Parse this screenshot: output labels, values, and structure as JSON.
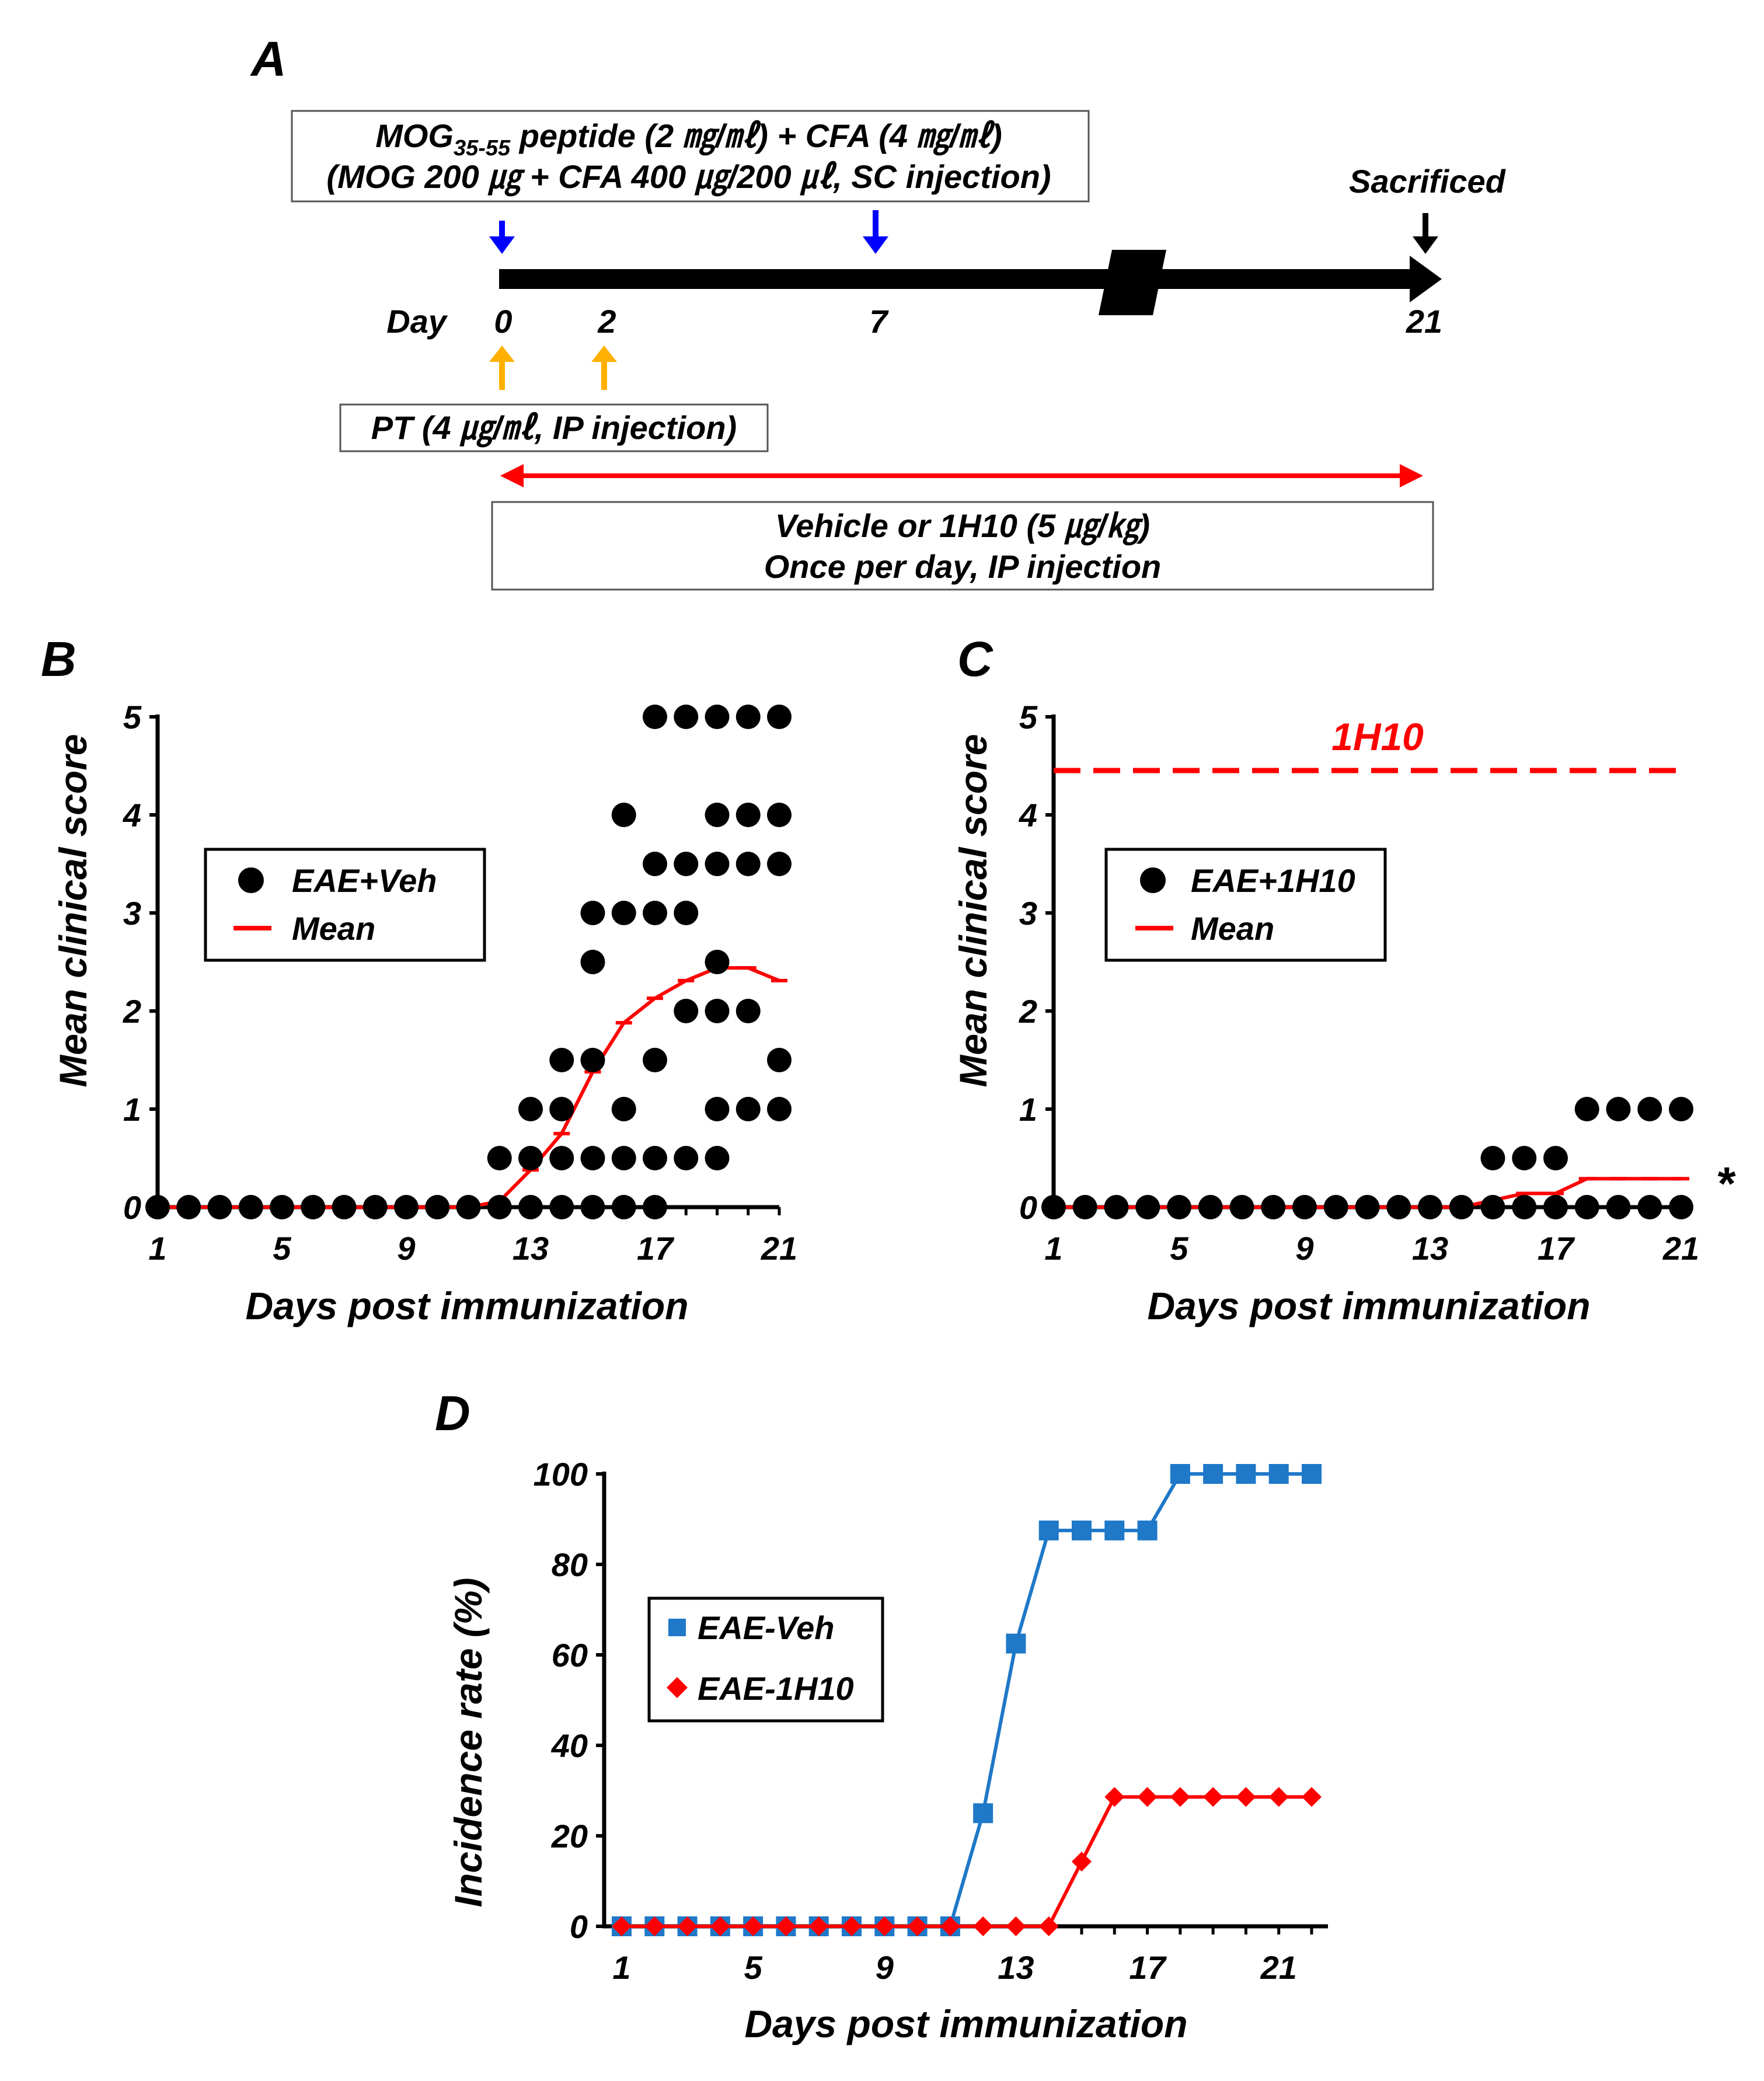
{
  "colors": {
    "red": "#ff0000",
    "blue": "#0000ff",
    "orange": "#ffb000",
    "steel_blue": "#1f78c8",
    "black": "#000000"
  },
  "panelA": {
    "label": "A",
    "mog_line1_a": "MOG",
    "mog_line1_sub": "35-55",
    "mog_line1_b": " peptide (2 ㎎/㎖) + CFA (4 ㎎/㎖)",
    "mog_line2": "(MOG 200 ㎍ + CFA 400 ㎍/200 ㎕, SC injection)",
    "sacrificed": "Sacrificed",
    "day_label": "Day",
    "day_0": "0",
    "day_2": "2",
    "day_7": "7",
    "day_21": "21",
    "pt_text": "PT (4 ㎍/㎖, IP injection)",
    "vehicle_line1": "Vehicle or 1H10 (5 ㎍/㎏)",
    "vehicle_line2": "Once per day, IP injection"
  },
  "chart_data": [
    {
      "panel": "B",
      "type": "scatter",
      "xlabel": "Days post immunization",
      "ylabel": "Mean clinical score",
      "xlim": [
        1,
        21
      ],
      "ylim": [
        0,
        5
      ],
      "xticks": [
        "1",
        "5",
        "9",
        "13",
        "17",
        "21"
      ],
      "yticks": [
        "0",
        "1",
        "2",
        "3",
        "4",
        "5"
      ],
      "legend": [
        "EAE+Veh",
        "Mean"
      ],
      "annotation": "",
      "points": {
        "1": [
          0
        ],
        "2": [
          0
        ],
        "3": [
          0
        ],
        "4": [
          0
        ],
        "5": [
          0
        ],
        "6": [
          0
        ],
        "7": [
          0
        ],
        "8": [
          0
        ],
        "9": [
          0
        ],
        "10": [
          0
        ],
        "11": [
          0
        ],
        "12": [
          0,
          0.5
        ],
        "13": [
          0,
          0.5,
          1
        ],
        "14": [
          0,
          0.5,
          1,
          1.5
        ],
        "15": [
          0,
          0.5,
          1.5,
          2.5,
          3
        ],
        "16": [
          0,
          0.5,
          1,
          3,
          4
        ],
        "17": [
          0,
          0.5,
          1.5,
          3,
          3.5,
          5
        ],
        "18": [
          0.5,
          2,
          3,
          3.5,
          5
        ],
        "19": [
          0.5,
          1,
          2,
          2.5,
          3.5,
          4,
          5
        ],
        "20": [
          1,
          2,
          3.5,
          4,
          5
        ],
        "21": [
          1,
          1.5,
          3.5,
          4,
          5
        ]
      },
      "mean": [
        0,
        0,
        0,
        0,
        0,
        0,
        0,
        0,
        0,
        0,
        0,
        0.06,
        0.38,
        0.75,
        1.38,
        1.88,
        2.13,
        2.31,
        2.44,
        2.44,
        2.31
      ]
    },
    {
      "panel": "C",
      "type": "scatter",
      "xlabel": "Days post immunization",
      "ylabel": "Mean clinical score",
      "xlim": [
        1,
        21
      ],
      "ylim": [
        0,
        5
      ],
      "xticks": [
        "1",
        "5",
        "9",
        "13",
        "17",
        "21"
      ],
      "yticks": [
        "0",
        "1",
        "2",
        "3",
        "4",
        "5"
      ],
      "legend": [
        "EAE+1H10",
        "Mean"
      ],
      "annotation": "1H10",
      "significance": "*",
      "points": {
        "1": [
          0
        ],
        "2": [
          0
        ],
        "3": [
          0
        ],
        "4": [
          0
        ],
        "5": [
          0
        ],
        "6": [
          0
        ],
        "7": [
          0
        ],
        "8": [
          0
        ],
        "9": [
          0
        ],
        "10": [
          0
        ],
        "11": [
          0
        ],
        "12": [
          0
        ],
        "13": [
          0
        ],
        "14": [
          0
        ],
        "15": [
          0,
          0.5
        ],
        "16": [
          0,
          0.5
        ],
        "17": [
          0,
          0.5
        ],
        "18": [
          0,
          1
        ],
        "19": [
          0,
          1
        ],
        "20": [
          0,
          1
        ],
        "21": [
          0,
          1
        ]
      },
      "mean": [
        0,
        0,
        0,
        0,
        0,
        0,
        0,
        0,
        0,
        0,
        0,
        0,
        0,
        0,
        0.07,
        0.14,
        0.14,
        0.29,
        0.29,
        0.29,
        0.29
      ]
    },
    {
      "panel": "D",
      "type": "line",
      "xlabel": "Days post immunization",
      "ylabel": "Incidence rate (%)",
      "xlim": [
        1,
        22
      ],
      "ylim": [
        0,
        100
      ],
      "xticks": [
        "1",
        "5",
        "9",
        "13",
        "17",
        "21"
      ],
      "yticks": [
        "0",
        "20",
        "40",
        "60",
        "80",
        "100"
      ],
      "x": [
        1,
        2,
        3,
        4,
        5,
        6,
        7,
        8,
        9,
        10,
        11,
        12,
        13,
        14,
        15,
        16,
        17,
        18,
        19,
        20,
        21,
        22
      ],
      "series": [
        {
          "name": "EAE-Veh",
          "values": [
            0,
            0,
            0,
            0,
            0,
            0,
            0,
            0,
            0,
            0,
            0,
            25,
            62.5,
            87.5,
            87.5,
            87.5,
            87.5,
            100,
            100,
            100,
            100,
            100
          ]
        },
        {
          "name": "EAE-1H10",
          "values": [
            0,
            0,
            0,
            0,
            0,
            0,
            0,
            0,
            0,
            0,
            0,
            0,
            0,
            0,
            14.3,
            28.6,
            28.6,
            28.6,
            28.6,
            28.6,
            28.6,
            28.6
          ]
        }
      ]
    }
  ]
}
